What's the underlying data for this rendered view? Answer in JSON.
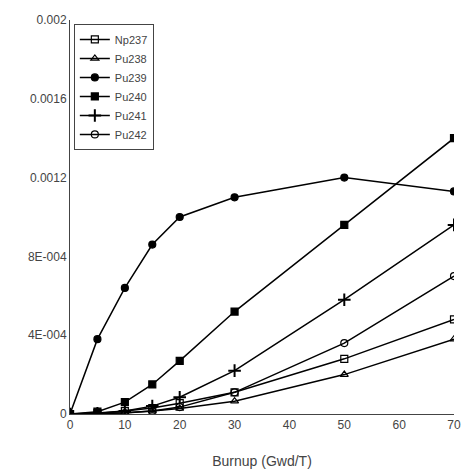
{
  "chart_data": {
    "type": "line",
    "xlabel": "Burnup (Gwd/T)",
    "x": [
      0,
      5,
      10,
      15,
      20,
      30,
      50,
      70
    ],
    "series": [
      {
        "name": "Np237",
        "color": "#000000",
        "marker": "square-open",
        "values": [
          0,
          5e-06,
          1.5e-05,
          3e-05,
          5.5e-05,
          0.00011,
          0.00028,
          0.00048
        ]
      },
      {
        "name": "Pu238",
        "color": "#000000",
        "marker": "triangle-open",
        "values": [
          0,
          2e-06,
          6e-06,
          1.5e-05,
          2.8e-05,
          6.5e-05,
          0.0002,
          0.00038
        ]
      },
      {
        "name": "Pu239",
        "color": "#000000",
        "marker": "circle",
        "values": [
          0,
          0.00038,
          0.00064,
          0.00086,
          0.001,
          0.0011,
          0.0012,
          0.00113
        ]
      },
      {
        "name": "Pu240",
        "color": "#000000",
        "marker": "square",
        "values": [
          0,
          1.2e-05,
          6e-05,
          0.00015,
          0.00027,
          0.00052,
          0.00096,
          0.0014
        ]
      },
      {
        "name": "Pu241",
        "color": "#000000",
        "marker": "plus",
        "values": [
          0,
          3e-06,
          1.5e-05,
          4e-05,
          8.5e-05,
          0.00022,
          0.00058,
          0.00096
        ]
      },
      {
        "name": "Pu242",
        "color": "#000000",
        "marker": "circle-open",
        "values": [
          0,
          1e-06,
          5e-06,
          1.5e-05,
          3.5e-05,
          0.00011,
          0.00036,
          0.0007
        ]
      }
    ],
    "xlim": [
      0,
      70
    ],
    "xticks": [
      0,
      10,
      20,
      30,
      40,
      50,
      60,
      70
    ],
    "ylim": [
      0,
      0.002
    ],
    "yticks": [
      0,
      {
        "value": 0.0004,
        "label": "4E-004"
      },
      {
        "value": 0.0008,
        "label": "8E-004"
      },
      0.0012,
      0.0016,
      0.002
    ],
    "grid": false,
    "legend": "upper left"
  }
}
